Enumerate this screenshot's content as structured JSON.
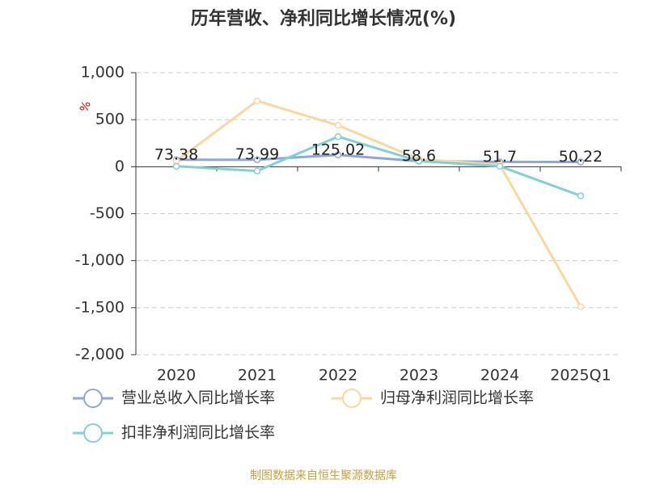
{
  "chart_data": {
    "type": "line",
    "title": "历年营收、净利同比增长情况(%)",
    "y_unit": "%",
    "source": "制图数据来自恒生聚源数据库",
    "categories": [
      "2020",
      "2021",
      "2022",
      "2023",
      "2024",
      "2025Q1"
    ],
    "series": [
      {
        "name": "营业总收入同比增长率",
        "color": "#8ea6d9",
        "show_labels": true,
        "values": [
          73.38,
          73.99,
          125.02,
          58.6,
          51.7,
          50.22
        ]
      },
      {
        "name": "归母净利润同比增长率",
        "color": "#f8d89c",
        "show_labels": false,
        "values": [
          60,
          700,
          440,
          80,
          20,
          -1490
        ]
      },
      {
        "name": "扣非净利润同比增长率",
        "color": "#80d0d8",
        "show_labels": false,
        "values": [
          5,
          -45,
          320,
          60,
          5,
          -310
        ]
      }
    ],
    "ylim": [
      -2000,
      1000
    ],
    "yticks": [
      {
        "value": -2000,
        "label": "-2,000"
      },
      {
        "value": -1500,
        "label": "-1,500"
      },
      {
        "value": -1000,
        "label": "-1,000"
      },
      -500,
      0,
      500,
      {
        "value": 1000,
        "label": "1,000"
      }
    ],
    "grid": true
  }
}
